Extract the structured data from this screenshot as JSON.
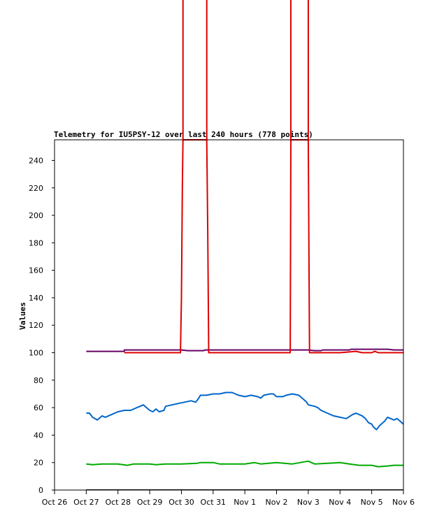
{
  "chart_data": {
    "type": "line",
    "title": "Telemetry for IU5PSY-12 over last 240 hours (778 points)",
    "ylabel": "Values",
    "xlabel": "",
    "ylim": [
      0,
      255
    ],
    "xlim": [
      0,
      11
    ],
    "x_tick_labels": [
      "Oct 26",
      "Oct 27",
      "Oct 28",
      "Oct 29",
      "Oct 30",
      "Oct 31",
      "Nov 1",
      "Nov 2",
      "Nov 3",
      "Nov 4",
      "Nov 5",
      "Nov 6"
    ],
    "y_ticks": [
      0,
      20,
      40,
      60,
      80,
      100,
      120,
      140,
      160,
      180,
      200,
      220,
      240
    ],
    "grid": false,
    "legend": "none",
    "series": [
      {
        "color": "#660066",
        "points": [
          [
            1.0,
            101
          ],
          [
            1.5,
            101
          ],
          [
            2.2,
            101
          ],
          [
            2.2,
            102
          ],
          [
            4.0,
            102
          ],
          [
            4.2,
            101.5
          ],
          [
            4.7,
            101.5
          ],
          [
            4.75,
            102
          ],
          [
            5.5,
            102
          ],
          [
            6.5,
            102
          ],
          [
            7.5,
            102
          ],
          [
            8.0,
            102
          ],
          [
            8.2,
            101.5
          ],
          [
            8.4,
            101.5
          ],
          [
            8.45,
            102
          ],
          [
            9.3,
            102
          ],
          [
            9.35,
            102.5
          ],
          [
            10.5,
            102.5
          ],
          [
            10.7,
            102
          ],
          [
            11.0,
            102
          ]
        ]
      },
      {
        "color": "#dd0000",
        "points": [
          [
            2.2,
            100
          ],
          [
            3.97,
            100
          ],
          [
            4.0,
            140
          ],
          [
            4.03,
            220
          ],
          [
            4.05,
            255
          ],
          [
            4.8,
            255
          ],
          [
            4.83,
            190
          ],
          [
            4.86,
            100
          ],
          [
            7.3,
            100
          ],
          [
            7.43,
            100
          ],
          [
            7.45,
            255
          ],
          [
            8.0,
            255
          ],
          [
            8.04,
            100
          ],
          [
            9.0,
            100
          ],
          [
            9.5,
            101
          ],
          [
            9.7,
            100
          ],
          [
            10.0,
            100
          ],
          [
            10.1,
            101
          ],
          [
            10.2,
            100
          ],
          [
            11.0,
            100
          ]
        ]
      },
      {
        "color": "#0066cc",
        "points": [
          [
            1.0,
            56
          ],
          [
            1.1,
            56
          ],
          [
            1.2,
            53
          ],
          [
            1.35,
            51
          ],
          [
            1.5,
            54
          ],
          [
            1.6,
            53
          ],
          [
            1.8,
            55
          ],
          [
            2.0,
            57
          ],
          [
            2.2,
            58
          ],
          [
            2.4,
            58
          ],
          [
            2.6,
            60
          ],
          [
            2.8,
            62
          ],
          [
            2.9,
            60
          ],
          [
            3.0,
            58
          ],
          [
            3.1,
            57
          ],
          [
            3.2,
            59
          ],
          [
            3.3,
            57
          ],
          [
            3.45,
            58
          ],
          [
            3.5,
            61
          ],
          [
            3.7,
            62
          ],
          [
            3.9,
            63
          ],
          [
            4.1,
            64
          ],
          [
            4.3,
            65
          ],
          [
            4.45,
            64
          ],
          [
            4.55,
            67
          ],
          [
            4.6,
            69
          ],
          [
            4.8,
            69
          ],
          [
            5.0,
            70
          ],
          [
            5.2,
            70
          ],
          [
            5.4,
            71
          ],
          [
            5.6,
            71
          ],
          [
            5.7,
            70
          ],
          [
            5.8,
            69
          ],
          [
            6.0,
            68
          ],
          [
            6.2,
            69
          ],
          [
            6.4,
            68
          ],
          [
            6.5,
            67
          ],
          [
            6.6,
            69
          ],
          [
            6.8,
            70
          ],
          [
            6.9,
            70
          ],
          [
            7.0,
            68
          ],
          [
            7.2,
            68
          ],
          [
            7.3,
            69
          ],
          [
            7.5,
            70
          ],
          [
            7.7,
            69
          ],
          [
            7.85,
            66
          ],
          [
            7.95,
            64
          ],
          [
            8.0,
            62
          ],
          [
            8.2,
            61
          ],
          [
            8.3,
            60
          ],
          [
            8.4,
            58
          ],
          [
            8.6,
            56
          ],
          [
            8.8,
            54
          ],
          [
            9.0,
            53
          ],
          [
            9.2,
            52
          ],
          [
            9.4,
            55
          ],
          [
            9.5,
            56
          ],
          [
            9.6,
            55
          ],
          [
            9.7,
            54
          ],
          [
            9.8,
            52
          ],
          [
            9.9,
            49
          ],
          [
            10.0,
            48
          ],
          [
            10.05,
            46
          ],
          [
            10.15,
            44
          ],
          [
            10.25,
            47
          ],
          [
            10.4,
            50
          ],
          [
            10.5,
            53
          ],
          [
            10.6,
            52
          ],
          [
            10.7,
            51
          ],
          [
            10.8,
            52
          ],
          [
            10.9,
            50
          ],
          [
            11.0,
            48
          ]
        ]
      },
      {
        "color": "#00aa00",
        "points": [
          [
            1.0,
            19
          ],
          [
            1.2,
            18.5
          ],
          [
            1.5,
            19
          ],
          [
            2.0,
            19
          ],
          [
            2.3,
            18
          ],
          [
            2.5,
            19
          ],
          [
            3.0,
            19
          ],
          [
            3.2,
            18.5
          ],
          [
            3.5,
            19
          ],
          [
            4.0,
            19
          ],
          [
            4.5,
            19.5
          ],
          [
            4.6,
            20
          ],
          [
            5.0,
            20
          ],
          [
            5.2,
            19
          ],
          [
            6.0,
            19
          ],
          [
            6.3,
            20
          ],
          [
            6.5,
            19
          ],
          [
            7.0,
            20
          ],
          [
            7.5,
            19
          ],
          [
            8.0,
            21
          ],
          [
            8.2,
            19
          ],
          [
            9.0,
            20
          ],
          [
            9.3,
            19
          ],
          [
            9.6,
            18
          ],
          [
            10.0,
            18
          ],
          [
            10.2,
            17
          ],
          [
            10.5,
            17.5
          ],
          [
            10.7,
            18
          ],
          [
            11.0,
            18
          ]
        ]
      },
      {
        "color": "#000000",
        "points": [
          [
            1.0,
            0
          ],
          [
            11.0,
            0
          ]
        ]
      }
    ]
  }
}
